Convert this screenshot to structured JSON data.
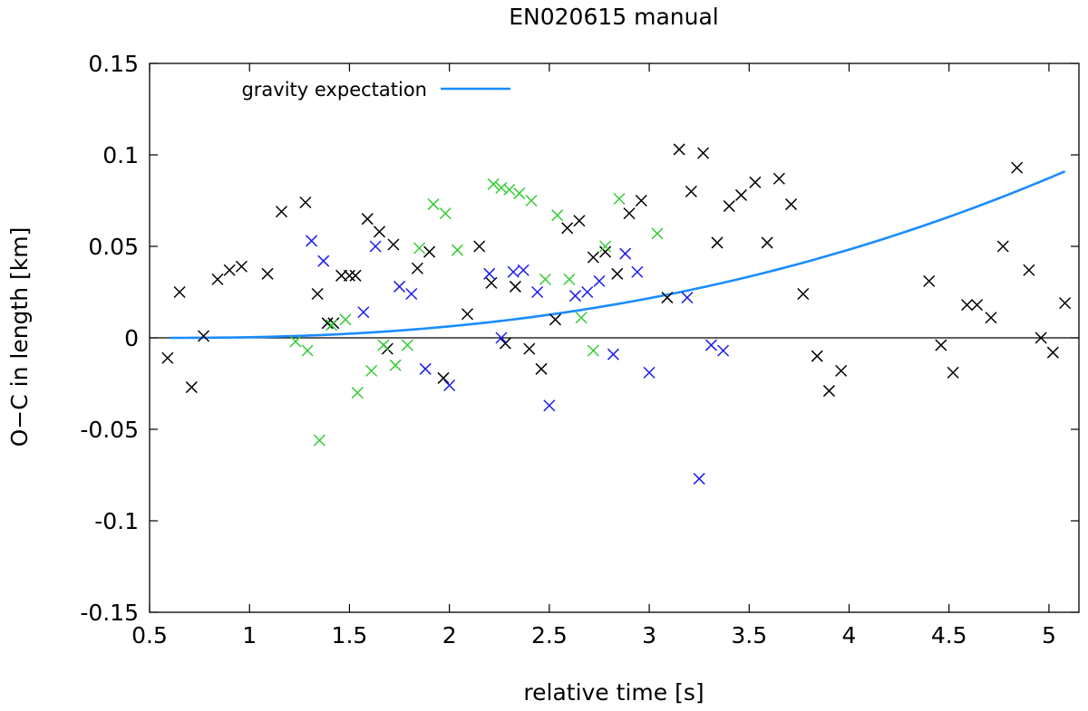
{
  "chart_data": {
    "type": "scatter",
    "title": "EN020615 manual",
    "xlabel": "relative time [s]",
    "ylabel": "O−C in length [km]",
    "xlim": [
      0.5,
      5.15
    ],
    "ylim": [
      -0.15,
      0.15
    ],
    "x_ticks": [
      0.5,
      1,
      1.5,
      2,
      2.5,
      3,
      3.5,
      4,
      4.5,
      5
    ],
    "x_tick_labels": [
      "0.5",
      "1",
      "1.5",
      "2",
      "2.5",
      "3",
      "3.5",
      "4",
      "4.5",
      "5"
    ],
    "y_ticks": [
      -0.15,
      -0.1,
      -0.05,
      0,
      0.05,
      0.1,
      0.15
    ],
    "y_tick_labels": [
      "-0.15",
      "-0.1",
      "-0.05",
      "0",
      "0.05",
      "0.1",
      "0.15"
    ],
    "zero_line": true,
    "legend": {
      "position": "top-left",
      "entries": [
        {
          "label": "gravity expectation",
          "color": "#1a8cff"
        }
      ]
    },
    "curve": {
      "name": "gravity expectation",
      "color": "#1a8cff",
      "x_start": 0.6,
      "x_end": 5.08,
      "end_value": 0.091,
      "exponent": 2.3
    },
    "series": [
      {
        "name": "black",
        "color": "#000000",
        "points": [
          [
            0.59,
            -0.011
          ],
          [
            0.65,
            0.025
          ],
          [
            0.71,
            -0.027
          ],
          [
            0.77,
            0.001
          ],
          [
            0.84,
            0.032
          ],
          [
            0.9,
            0.037
          ],
          [
            0.96,
            0.039
          ],
          [
            1.09,
            0.035
          ],
          [
            1.16,
            0.069
          ],
          [
            1.28,
            0.074
          ],
          [
            1.34,
            0.024
          ],
          [
            1.39,
            0.008
          ],
          [
            1.42,
            0.008
          ],
          [
            1.46,
            0.034
          ],
          [
            1.5,
            0.034
          ],
          [
            1.53,
            0.034
          ],
          [
            1.59,
            0.065
          ],
          [
            1.65,
            0.058
          ],
          [
            1.69,
            -0.006
          ],
          [
            1.72,
            0.051
          ],
          [
            1.84,
            0.038
          ],
          [
            1.9,
            0.047
          ],
          [
            1.97,
            -0.022
          ],
          [
            2.09,
            0.013
          ],
          [
            2.15,
            0.05
          ],
          [
            2.21,
            0.03
          ],
          [
            2.28,
            -0.003
          ],
          [
            2.33,
            0.028
          ],
          [
            2.4,
            -0.006
          ],
          [
            2.46,
            -0.017
          ],
          [
            2.53,
            0.01
          ],
          [
            2.59,
            0.06
          ],
          [
            2.65,
            0.064
          ],
          [
            2.72,
            0.044
          ],
          [
            2.78,
            0.047
          ],
          [
            2.84,
            0.035
          ],
          [
            2.9,
            0.068
          ],
          [
            2.96,
            0.075
          ],
          [
            3.09,
            0.022
          ],
          [
            3.15,
            0.103
          ],
          [
            3.21,
            0.08
          ],
          [
            3.27,
            0.101
          ],
          [
            3.34,
            0.052
          ],
          [
            3.4,
            0.072
          ],
          [
            3.46,
            0.078
          ],
          [
            3.53,
            0.085
          ],
          [
            3.59,
            0.052
          ],
          [
            3.65,
            0.087
          ],
          [
            3.71,
            0.073
          ],
          [
            3.77,
            0.024
          ],
          [
            3.84,
            -0.01
          ],
          [
            3.9,
            -0.029
          ],
          [
            3.96,
            -0.018
          ],
          [
            4.4,
            0.031
          ],
          [
            4.46,
            -0.004
          ],
          [
            4.52,
            -0.019
          ],
          [
            4.59,
            0.018
          ],
          [
            4.64,
            0.018
          ],
          [
            4.71,
            0.011
          ],
          [
            4.77,
            0.05
          ],
          [
            4.84,
            0.093
          ],
          [
            4.9,
            0.037
          ],
          [
            4.96,
            0.0
          ],
          [
            5.02,
            -0.008
          ],
          [
            5.08,
            0.019
          ]
        ]
      },
      {
        "name": "green",
        "color": "#33cc33",
        "points": [
          [
            1.23,
            -0.002
          ],
          [
            1.29,
            -0.007
          ],
          [
            1.35,
            -0.056
          ],
          [
            1.41,
            0.007
          ],
          [
            1.48,
            0.01
          ],
          [
            1.54,
            -0.03
          ],
          [
            1.61,
            -0.018
          ],
          [
            1.67,
            -0.004
          ],
          [
            1.73,
            -0.015
          ],
          [
            1.79,
            -0.004
          ],
          [
            1.85,
            0.049
          ],
          [
            1.92,
            0.073
          ],
          [
            1.98,
            0.068
          ],
          [
            2.04,
            0.048
          ],
          [
            2.22,
            0.084
          ],
          [
            2.26,
            0.082
          ],
          [
            2.3,
            0.081
          ],
          [
            2.35,
            0.079
          ],
          [
            2.41,
            0.075
          ],
          [
            2.48,
            0.032
          ],
          [
            2.54,
            0.067
          ],
          [
            2.6,
            0.032
          ],
          [
            2.66,
            0.011
          ],
          [
            2.72,
            -0.007
          ],
          [
            2.78,
            0.05
          ],
          [
            2.85,
            0.076
          ],
          [
            3.04,
            0.057
          ]
        ]
      },
      {
        "name": "blue",
        "color": "#1a1aee",
        "points": [
          [
            1.31,
            0.053
          ],
          [
            1.37,
            0.042
          ],
          [
            1.57,
            0.014
          ],
          [
            1.63,
            0.05
          ],
          [
            1.75,
            0.028
          ],
          [
            1.81,
            0.024
          ],
          [
            1.88,
            -0.017
          ],
          [
            2.0,
            -0.026
          ],
          [
            2.2,
            0.035
          ],
          [
            2.26,
            0.0
          ],
          [
            2.32,
            0.036
          ],
          [
            2.37,
            0.037
          ],
          [
            2.44,
            0.025
          ],
          [
            2.5,
            -0.037
          ],
          [
            2.63,
            0.023
          ],
          [
            2.69,
            0.025
          ],
          [
            2.75,
            0.031
          ],
          [
            2.82,
            -0.009
          ],
          [
            2.88,
            0.046
          ],
          [
            2.94,
            0.036
          ],
          [
            3.0,
            -0.019
          ],
          [
            3.19,
            0.022
          ],
          [
            3.25,
            -0.077
          ],
          [
            3.31,
            -0.004
          ],
          [
            3.37,
            -0.007
          ]
        ]
      }
    ]
  }
}
